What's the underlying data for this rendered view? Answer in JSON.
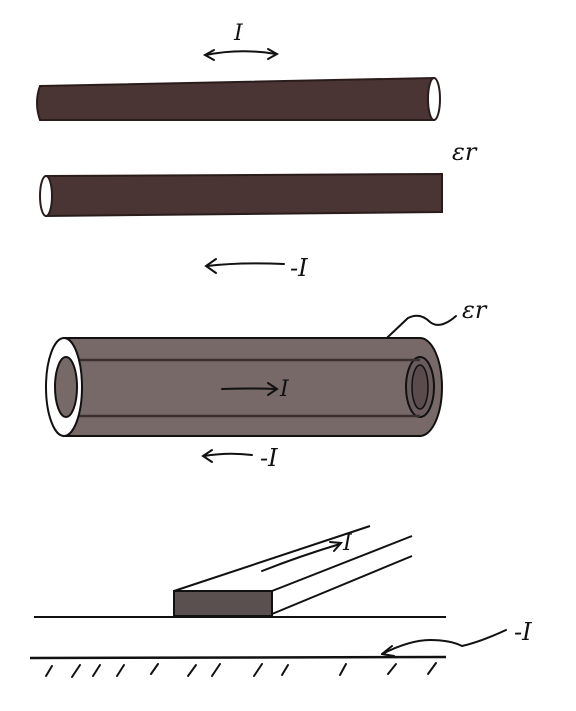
{
  "colors": {
    "ink": "#111111",
    "wire_fill": "#4a3434",
    "wire_edge": "#2b1c1c",
    "coax_fill": "#786969",
    "coax_inner": "#6a5c5c",
    "strip_face": "#5a5050",
    "background": "#ffffff"
  },
  "panels": [
    {
      "type": "two-wire-line",
      "labels": {
        "forward_current": "I",
        "return_current": "-I",
        "dielectric": "εr"
      }
    },
    {
      "type": "coaxial-line",
      "labels": {
        "inner_current": "I",
        "return_current": "-I",
        "dielectric": "εr"
      }
    },
    {
      "type": "microstrip-line",
      "labels": {
        "strip_current": "I",
        "ground_current": "-I"
      }
    }
  ]
}
